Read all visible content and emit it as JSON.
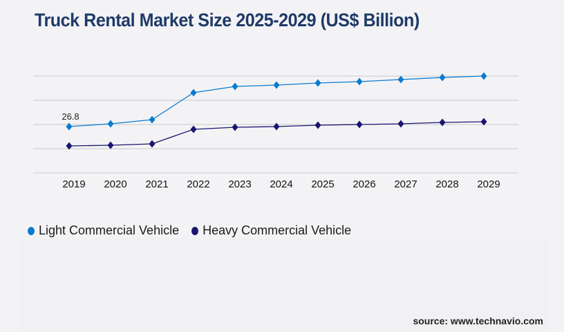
{
  "title": "Truck Rental Market Size 2025-2029 (US$ Billion)",
  "source": "source: www.technavio.com",
  "chart_data": {
    "type": "line",
    "title": "Truck Rental Market Size 2025-2029 (US$ Billion)",
    "x": [
      "2019",
      "2020",
      "2021",
      "2022",
      "2023",
      "2024",
      "2025",
      "2026",
      "2027",
      "2028",
      "2029"
    ],
    "ylim": [
      0,
      56
    ],
    "grid": true,
    "yticks": [
      0,
      14,
      28,
      42,
      56
    ],
    "legend_placement": "bottom-left",
    "series": [
      {
        "name": "Light Commercial Vehicle",
        "color": "#0a7bd0",
        "values": [
          26.8,
          28.4,
          30.8,
          46.4,
          50.0,
          50.8,
          52.0,
          52.8,
          54.0,
          55.2,
          56.0
        ]
      },
      {
        "name": "Heavy Commercial Vehicle",
        "color": "#1a1570",
        "values": [
          15.6,
          16.0,
          16.8,
          25.2,
          26.4,
          26.8,
          27.6,
          28.0,
          28.4,
          29.2,
          29.6
        ]
      }
    ],
    "annotations": [
      {
        "series": 0,
        "index": 0,
        "text": "26.8"
      }
    ]
  }
}
